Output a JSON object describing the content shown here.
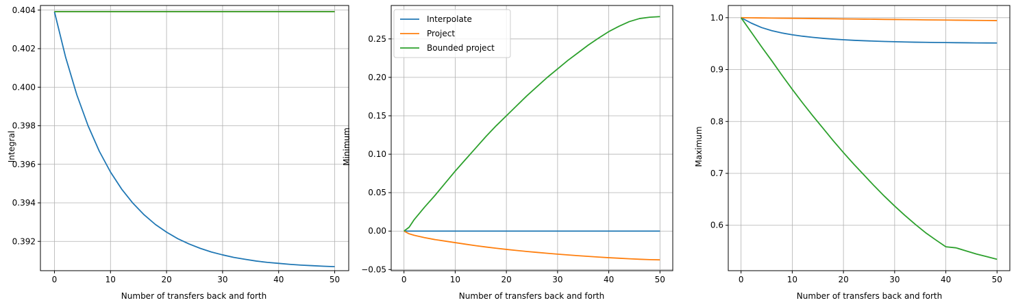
{
  "chart_data": [
    {
      "type": "line",
      "xlabel": "Number of transfers back and forth",
      "ylabel": "Integral",
      "xlim": [
        -2.5,
        52.5
      ],
      "ylim": [
        0.39048,
        0.40424
      ],
      "xticks": [
        0,
        10,
        20,
        30,
        40,
        50
      ],
      "xtick_labels": [
        "0",
        "10",
        "20",
        "30",
        "40",
        "50"
      ],
      "yticks": [
        0.392,
        0.394,
        0.396,
        0.398,
        0.4,
        0.402,
        0.404
      ],
      "ytick_labels": [
        "0.392",
        "0.394",
        "0.396",
        "0.398",
        "0.400",
        "0.402",
        "0.404"
      ],
      "grid": true,
      "x": [
        0,
        2,
        4,
        6,
        8,
        10,
        12,
        14,
        16,
        18,
        20,
        22,
        24,
        26,
        28,
        30,
        32,
        34,
        36,
        38,
        40,
        42,
        44,
        46,
        48,
        50
      ],
      "series": [
        {
          "name": "Interpolate",
          "color": "#1f77b4",
          "values": [
            0.40392,
            0.40155,
            0.3996,
            0.398,
            0.39668,
            0.3956,
            0.39471,
            0.39398,
            0.39338,
            0.39288,
            0.39248,
            0.39214,
            0.39187,
            0.39164,
            0.39145,
            0.3913,
            0.39117,
            0.39107,
            0.39098,
            0.39091,
            0.39086,
            0.39081,
            0.39077,
            0.39074,
            0.39071,
            0.39069
          ]
        },
        {
          "name": "Project",
          "color": "#ff7f0e",
          "values": [
            0.40392,
            0.40392,
            0.40392,
            0.40392,
            0.40392,
            0.40392,
            0.40392,
            0.40392,
            0.40392,
            0.40392,
            0.40392,
            0.40392,
            0.40392,
            0.40392,
            0.40392,
            0.40392,
            0.40392,
            0.40392,
            0.40392,
            0.40392,
            0.40392,
            0.40392,
            0.40392,
            0.40392,
            0.40392,
            0.40392
          ]
        },
        {
          "name": "Bounded project",
          "color": "#2ca02c",
          "values": [
            0.40392,
            0.40392,
            0.40392,
            0.40392,
            0.40392,
            0.40392,
            0.40392,
            0.40392,
            0.40392,
            0.40392,
            0.40392,
            0.40392,
            0.40392,
            0.40392,
            0.40392,
            0.40392,
            0.40392,
            0.40392,
            0.40392,
            0.40392,
            0.40392,
            0.40392,
            0.40392,
            0.40392,
            0.40392,
            0.40392
          ]
        }
      ]
    },
    {
      "type": "line",
      "xlabel": "Number of transfers back and forth",
      "ylabel": "Minimum",
      "xlim": [
        -2.5,
        52.5
      ],
      "ylim": [
        -0.0515,
        0.2935
      ],
      "xticks": [
        0,
        10,
        20,
        30,
        40,
        50
      ],
      "xtick_labels": [
        "0",
        "10",
        "20",
        "30",
        "40",
        "50"
      ],
      "yticks": [
        -0.05,
        0.0,
        0.05,
        0.1,
        0.15,
        0.2,
        0.25
      ],
      "ytick_labels": [
        "−0.05",
        "0.00",
        "0.05",
        "0.10",
        "0.15",
        "0.20",
        "0.25"
      ],
      "grid": true,
      "legend": "upper-left",
      "x": [
        0,
        1,
        2,
        4,
        6,
        8,
        10,
        12,
        14,
        16,
        18,
        20,
        22,
        24,
        26,
        28,
        30,
        32,
        34,
        36,
        38,
        40,
        42,
        44,
        46,
        48,
        50
      ],
      "series": [
        {
          "name": "Interpolate",
          "color": "#1f77b4",
          "values": [
            0,
            0,
            0,
            0,
            0,
            0,
            0,
            0,
            0,
            0,
            0,
            0,
            0,
            0,
            0,
            0,
            0,
            0,
            0,
            0,
            0,
            0,
            0,
            0,
            0,
            0,
            0
          ]
        },
        {
          "name": "Project",
          "color": "#ff7f0e",
          "values": [
            0,
            -0.0035,
            -0.0055,
            -0.0085,
            -0.011,
            -0.013,
            -0.015,
            -0.017,
            -0.019,
            -0.0207,
            -0.0223,
            -0.0238,
            -0.0252,
            -0.0265,
            -0.0277,
            -0.0289,
            -0.03,
            -0.031,
            -0.032,
            -0.0329,
            -0.0338,
            -0.0346,
            -0.0353,
            -0.036,
            -0.0366,
            -0.0371,
            -0.0374
          ]
        },
        {
          "name": "Bounded project",
          "color": "#2ca02c",
          "values": [
            0,
            0.005,
            0.015,
            0.031,
            0.046,
            0.062,
            0.078,
            0.093,
            0.108,
            0.123,
            0.137,
            0.15,
            0.163,
            0.176,
            0.188,
            0.2,
            0.211,
            0.222,
            0.232,
            0.242,
            0.251,
            0.2595,
            0.2665,
            0.2725,
            0.2765,
            0.2782,
            0.279
          ]
        }
      ]
    },
    {
      "type": "line",
      "xlabel": "Number of transfers back and forth",
      "ylabel": "Maximum",
      "xlim": [
        -2.5,
        52.5
      ],
      "ylim": [
        0.5125,
        1.0235
      ],
      "xticks": [
        0,
        10,
        20,
        30,
        40,
        50
      ],
      "xtick_labels": [
        "0",
        "10",
        "20",
        "30",
        "40",
        "50"
      ],
      "yticks": [
        0.6,
        0.7,
        0.8,
        0.9,
        1.0
      ],
      "ytick_labels": [
        "0.6",
        "0.7",
        "0.8",
        "0.9",
        "1.0"
      ],
      "grid": true,
      "x": [
        0,
        2,
        4,
        6,
        8,
        10,
        12,
        14,
        16,
        18,
        20,
        22,
        24,
        26,
        28,
        30,
        32,
        34,
        36,
        38,
        40,
        42,
        44,
        46,
        48,
        50
      ],
      "series": [
        {
          "name": "Interpolate",
          "color": "#1f77b4",
          "values": [
            1.0,
            0.9895,
            0.981,
            0.975,
            0.9705,
            0.967,
            0.9643,
            0.9621,
            0.9602,
            0.9587,
            0.9575,
            0.9564,
            0.9556,
            0.9548,
            0.9542,
            0.9537,
            0.9532,
            0.9528,
            0.9525,
            0.9522,
            0.952,
            0.9518,
            0.9516,
            0.9514,
            0.9513,
            0.9512
          ]
        },
        {
          "name": "Project",
          "color": "#ff7f0e",
          "values": [
            1.0,
            0.9997,
            0.9995,
            0.9992,
            0.999,
            0.9988,
            0.9986,
            0.9983,
            0.9981,
            0.9979,
            0.9976,
            0.9974,
            0.9972,
            0.997,
            0.9967,
            0.9965,
            0.9963,
            0.9961,
            0.9958,
            0.9956,
            0.9954,
            0.9952,
            0.995,
            0.9948,
            0.9946,
            0.9944
          ]
        },
        {
          "name": "Bounded project",
          "color": "#2ca02c",
          "values": [
            1.0,
            0.972,
            0.944,
            0.917,
            0.889,
            0.862,
            0.836,
            0.811,
            0.787,
            0.763,
            0.74,
            0.718,
            0.697,
            0.676,
            0.656,
            0.637,
            0.619,
            0.602,
            0.586,
            0.572,
            0.5585,
            0.5565,
            0.5505,
            0.5445,
            0.5395,
            0.5345
          ]
        }
      ]
    }
  ],
  "legend": {
    "entries": [
      "Interpolate",
      "Project",
      "Bounded project"
    ]
  }
}
